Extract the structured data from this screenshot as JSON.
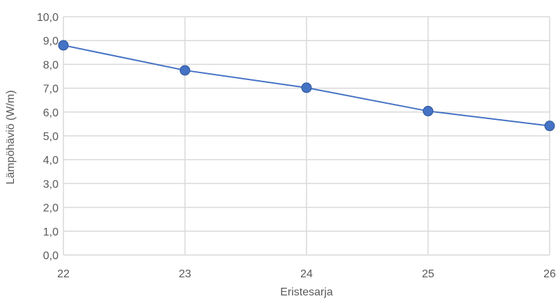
{
  "chart_data": {
    "type": "line",
    "title": "",
    "xlabel": "Eristesarja",
    "ylabel": "Lämpöhäviö (W/m)",
    "x": [
      22,
      23,
      24,
      25,
      26
    ],
    "x_tick_labels": [
      "22",
      "23",
      "24",
      "25",
      "26"
    ],
    "y_tick_labels": [
      "0,0",
      "1,0",
      "2,0",
      "3,0",
      "4,0",
      "5,0",
      "6,0",
      "7,0",
      "8,0",
      "9,0",
      "10,0"
    ],
    "ylim": [
      0,
      10
    ],
    "xlim": [
      22,
      26
    ],
    "grid": true,
    "series": [
      {
        "values": [
          8.8,
          7.75,
          7.02,
          6.04,
          5.42
        ]
      }
    ],
    "colors": {
      "series": "#4472c4",
      "marker_stroke": "#2f5597",
      "grid": "#d9d9d9",
      "text": "#595959"
    }
  }
}
